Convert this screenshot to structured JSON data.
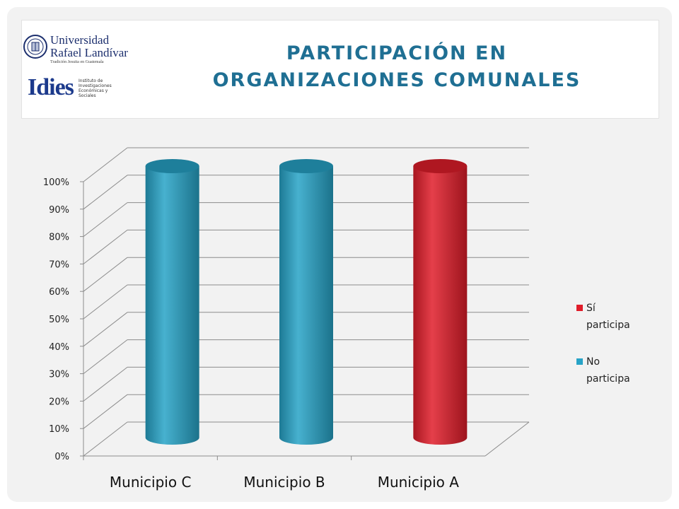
{
  "slide": {
    "title_line1": "PARTICIPACIÓN EN",
    "title_line2": "ORGANIZACIONES COMUNALES",
    "logo_univ": {
      "line1": "Universidad",
      "line2": "Rafael Landívar",
      "tagline": "Tradición Jesuita en Guatemala"
    },
    "logo_idies": {
      "name": "Idies",
      "sub": "Instituto de Investigaciones Económicas y Sociales"
    }
  },
  "colors": {
    "si_participa": "#e01d2a",
    "no_participa": "#27a3c7",
    "title": "#1f6f93"
  },
  "chart_data": {
    "type": "bar",
    "style": "3d-cylinder",
    "categories": [
      "Municipio C",
      "Municipio B",
      "Municipio A"
    ],
    "series": [
      {
        "name": "Sí participa",
        "values": [
          0,
          0,
          100
        ],
        "color": "#e01d2a"
      },
      {
        "name": "No participa",
        "values": [
          100,
          100,
          0
        ],
        "color": "#27a3c7"
      }
    ],
    "yticks": [
      "0%",
      "10%",
      "20%",
      "30%",
      "40%",
      "50%",
      "60%",
      "70%",
      "80%",
      "90%",
      "100%"
    ],
    "ylim": [
      0,
      100
    ],
    "grid": true,
    "legend": "right",
    "legend_labels": [
      [
        "Sí",
        "participa"
      ],
      [
        "No",
        "participa"
      ]
    ]
  }
}
